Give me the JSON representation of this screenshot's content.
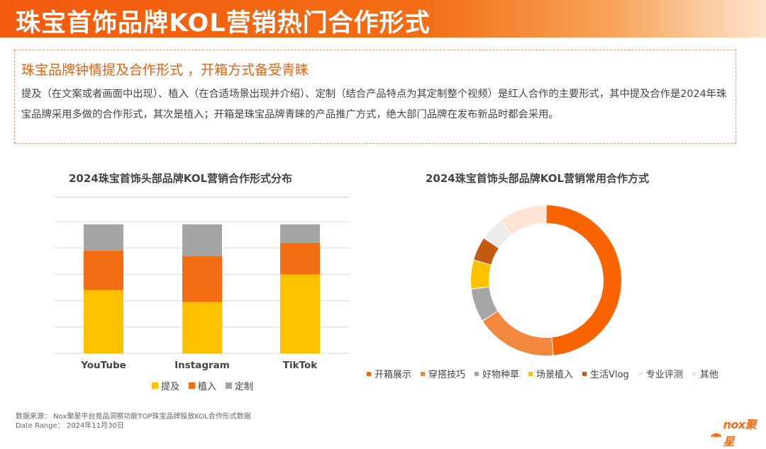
{
  "header": {
    "title": "珠宝首饰品牌KOL营销热门合作形式"
  },
  "summary": {
    "heading": "珠宝品牌钟情提及合作形式 ，开箱方式备受青睐",
    "body": "提及（在文案或者画面中出现）、植入（在合适场景出现并介绍）、定制（结合产品特点为其定制整个视频）是红人合作的主要形式，其中提及合作是2024年珠宝品牌采用多做的合作形式，其次是植入；开箱是珠宝品牌青睐的产品推广方式，绝大部门品牌在发布新品时都会采用。"
  },
  "chart_data": [
    {
      "type": "bar",
      "stacked": true,
      "title": "2024珠宝首饰头部品牌KOL营销合作形式分布",
      "categories": [
        "YouTube",
        "Instagram",
        "TikTok"
      ],
      "series": [
        {
          "name": "提及",
          "values": [
            0.48,
            0.39,
            0.6
          ],
          "color": "#ffc000"
        },
        {
          "name": "植入",
          "values": [
            0.3,
            0.35,
            0.24
          ],
          "color": "#f36d13"
        },
        {
          "name": "定制",
          "values": [
            0.2,
            0.24,
            0.14
          ],
          "color": "#a5a5a5"
        }
      ],
      "ylim": [
        0,
        1
      ],
      "grid": true,
      "legend": "bottom"
    },
    {
      "type": "pie",
      "donut": true,
      "title": "2024珠宝首饰头部品牌KOL营销常用合作方式",
      "slices": [
        {
          "name": "开箱展示",
          "value": 47,
          "color": "#fa6400"
        },
        {
          "name": "穿搭技巧",
          "value": 17,
          "color": "#f2883e"
        },
        {
          "name": "好物种草",
          "value": 7,
          "color": "#a6a6a6"
        },
        {
          "name": "场景植入",
          "value": 6,
          "color": "#ffc000"
        },
        {
          "name": "生活Vlog",
          "value": 5,
          "color": "#c55a11"
        },
        {
          "name": "专业评测",
          "value": 5,
          "color": "#ececec"
        },
        {
          "name": "其他",
          "value": 10,
          "color": "#fce4d6"
        }
      ],
      "legend": "bottom"
    }
  ],
  "footer": {
    "source_line": "数据来源：     Nox聚星平台竞品洞察功能TOP珠宝品牌投放KOL合作形式数据",
    "date_line": "Date  Range：  2024年11月30日"
  },
  "logo": {
    "text": "nox聚星"
  }
}
